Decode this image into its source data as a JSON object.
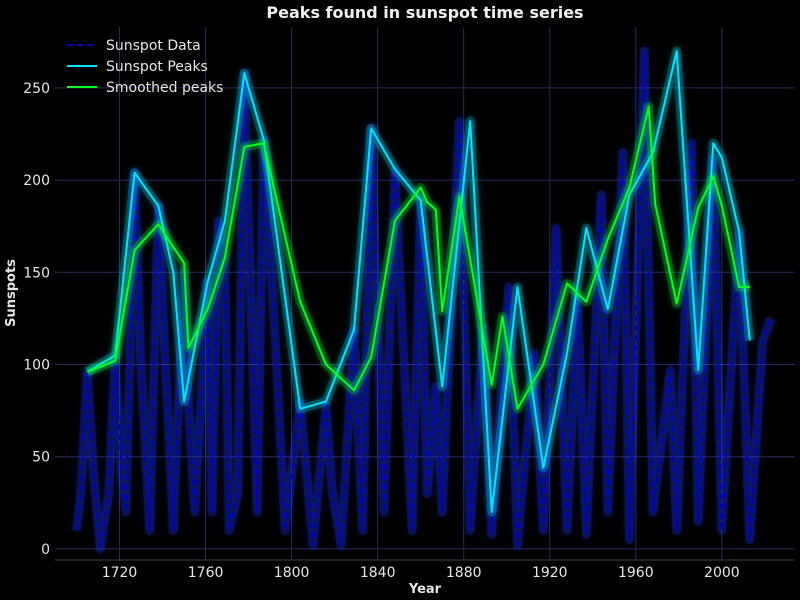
{
  "chart_data": {
    "type": "line",
    "title": "Peaks found in sunspot time series",
    "xlabel": "Year",
    "ylabel": "Sunspots",
    "xlim": [
      1690,
      2034
    ],
    "ylim": [
      -6,
      283
    ],
    "xticks": [
      1720,
      1760,
      1800,
      1840,
      1880,
      1920,
      1960,
      2000
    ],
    "yticks": [
      0,
      50,
      100,
      150,
      200,
      250
    ],
    "grid": true,
    "legend_position": "top-left",
    "series": [
      {
        "name": "Sunspot Data",
        "style": "dashed",
        "color": "#0000cc",
        "glow": "#1a3cff",
        "x": [
          1700,
          1702,
          1705,
          1708,
          1711,
          1715,
          1718,
          1721,
          1723,
          1727,
          1730,
          1734,
          1738,
          1741,
          1745,
          1750,
          1752,
          1755,
          1761,
          1763,
          1766,
          1769,
          1771,
          1775,
          1778,
          1782,
          1784,
          1787,
          1793,
          1797,
          1804,
          1810,
          1816,
          1819,
          1823,
          1829,
          1833,
          1837,
          1843,
          1848,
          1856,
          1860,
          1863,
          1867,
          1870,
          1878,
          1883,
          1889,
          1893,
          1901,
          1905,
          1913,
          1917,
          1923,
          1928,
          1933,
          1937,
          1944,
          1947,
          1954,
          1957,
          1964,
          1968,
          1976,
          1979,
          1986,
          1989,
          1996,
          2000,
          2008,
          2013,
          2019,
          2023
        ],
        "y": [
          10,
          30,
          96,
          40,
          0,
          30,
          105,
          40,
          20,
          204,
          100,
          10,
          186,
          110,
          10,
          150,
          80,
          20,
          145,
          20,
          178,
          160,
          10,
          30,
          258,
          100,
          20,
          222,
          100,
          10,
          80,
          2,
          78,
          30,
          2,
          119,
          10,
          228,
          20,
          205,
          10,
          189,
          30,
          88,
          20,
          232,
          10,
          120,
          8,
          142,
          2,
          106,
          10,
          174,
          10,
          136,
          8,
          192,
          20,
          215,
          5,
          270,
          20,
          97,
          10,
          220,
          15,
          212,
          10,
          172,
          5,
          113,
          125
        ]
      },
      {
        "name": "Sunspot Peaks",
        "style": "solid",
        "color": "#00e5ff",
        "glow": "#00e5ff",
        "x": [
          1705,
          1718,
          1727,
          1738,
          1745,
          1750,
          1761,
          1769,
          1778,
          1787,
          1804,
          1816,
          1829,
          1837,
          1848,
          1860,
          1870,
          1883,
          1893,
          1905,
          1917,
          1928,
          1937,
          1947,
          1957,
          1968,
          1979,
          1989,
          1996,
          2000,
          2008,
          2013
        ],
        "y": [
          96,
          105,
          204,
          186,
          150,
          80,
          145,
          178,
          258,
          222,
          76,
          80,
          119,
          228,
          206,
          189,
          88,
          232,
          20,
          142,
          44,
          106,
          174,
          130,
          192,
          215,
          270,
          97,
          220,
          212,
          172,
          113
        ]
      },
      {
        "name": "Smoothed peaks",
        "style": "solid",
        "color": "#00ff22",
        "glow": "#00ff44",
        "x": [
          1705,
          1718,
          1727,
          1738,
          1750,
          1752,
          1761,
          1769,
          1778,
          1787,
          1804,
          1816,
          1829,
          1837,
          1848,
          1860,
          1863,
          1867,
          1870,
          1878,
          1893,
          1898,
          1905,
          1917,
          1928,
          1937,
          1947,
          1957,
          1966,
          1969,
          1979,
          1989,
          1996,
          2000,
          2008,
          2013
        ],
        "y": [
          96,
          102,
          162,
          176,
          155,
          109,
          130,
          158,
          218,
          220,
          134,
          100,
          86,
          104,
          178,
          196,
          188,
          184,
          129,
          191,
          89,
          126,
          76,
          100,
          144,
          134,
          168,
          196,
          240,
          187,
          133,
          185,
          202,
          186,
          142,
          142
        ]
      }
    ]
  }
}
